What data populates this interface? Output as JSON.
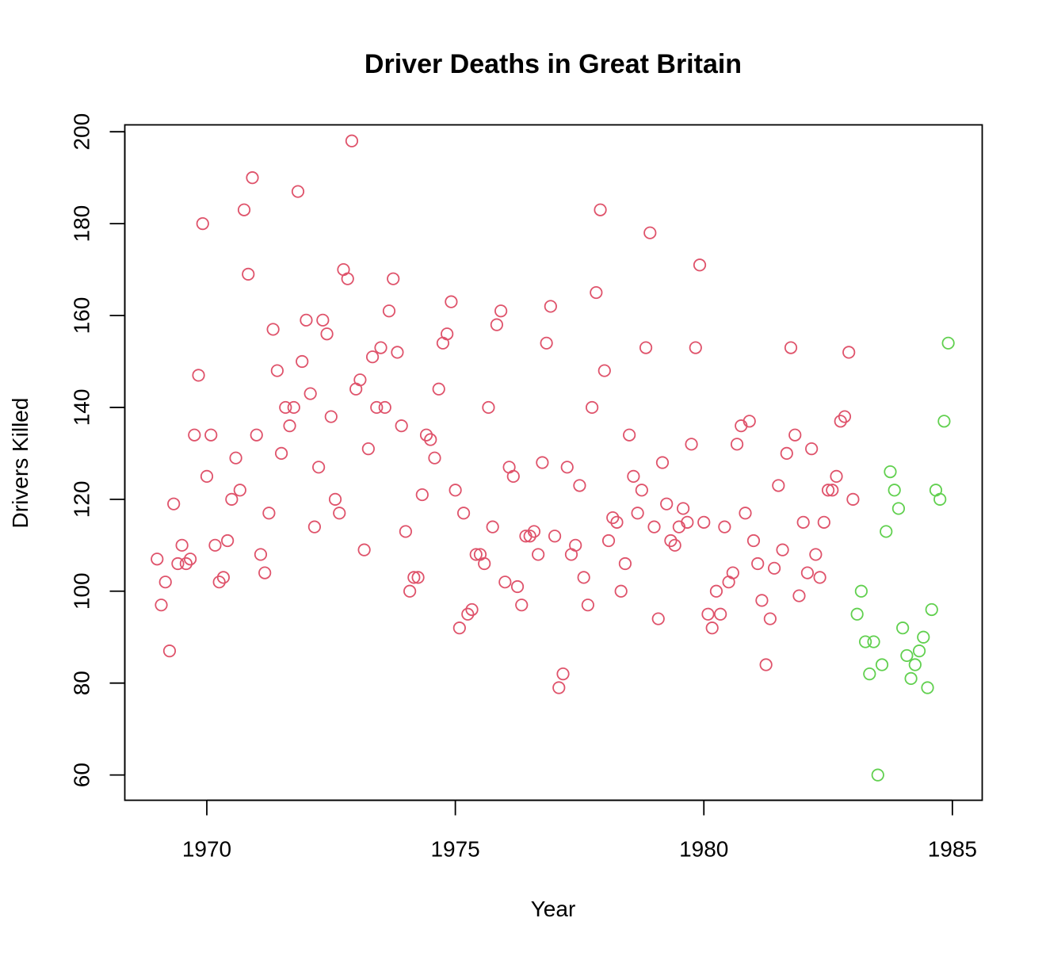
{
  "chart_data": {
    "type": "scatter",
    "title": "Driver Deaths in Great Britain",
    "xlabel": "Year",
    "ylabel": "Drivers Killed",
    "xlim": [
      1968.35,
      1985.6
    ],
    "ylim": [
      54.5,
      201.5
    ],
    "xticks": [
      1970,
      1975,
      1980,
      1985
    ],
    "yticks": [
      60,
      80,
      100,
      120,
      140,
      160,
      180,
      200
    ],
    "grid": false,
    "legend": "none",
    "colors": {
      "before_law": "#DF536B",
      "after_law": "#61D04F",
      "axis": "#000000"
    },
    "x_start": 1969,
    "x_step": 0.0833333333,
    "series": [
      {
        "color": "#DF536B",
        "marker": "open-circle",
        "values": [
          107,
          97,
          102,
          87,
          119,
          106,
          110,
          106,
          107,
          134,
          147,
          180,
          125,
          134,
          110,
          102,
          103,
          111,
          120,
          129,
          122,
          183,
          169,
          190,
          134,
          108,
          104,
          117,
          157,
          148,
          130,
          140,
          136,
          140,
          187,
          150,
          159,
          143,
          114,
          127,
          159,
          156,
          138,
          120,
          117,
          170,
          168,
          198,
          144,
          146,
          109,
          131,
          151,
          140,
          153,
          140,
          161,
          168,
          152,
          136,
          113,
          100,
          103,
          103,
          121,
          134,
          133,
          129,
          144,
          154,
          156,
          163,
          122,
          92,
          117,
          95,
          96,
          108,
          108,
          106,
          140,
          114,
          158,
          161,
          102,
          127,
          125,
          101,
          97,
          112,
          112,
          113,
          108,
          128,
          154,
          162,
          112,
          79,
          82,
          127,
          108,
          110,
          123,
          103,
          97,
          140,
          165,
          183,
          148,
          111,
          116,
          115,
          100,
          106,
          134,
          125,
          117,
          122,
          153,
          178,
          114,
          94,
          128,
          119,
          111,
          110,
          114,
          118,
          115,
          132,
          153,
          171,
          115,
          95,
          92,
          100,
          95,
          114,
          102,
          104,
          132,
          136,
          117,
          137,
          111,
          106,
          98,
          84,
          94,
          105,
          123,
          109,
          130,
          153,
          134,
          99,
          115,
          104,
          131,
          108,
          103,
          115,
          122,
          122,
          125,
          137,
          138,
          152,
          120
        ]
      },
      {
        "color": "#61D04F",
        "marker": "open-circle",
        "values": [
          95,
          100,
          89,
          82,
          89,
          60,
          84,
          113,
          126,
          122,
          118,
          92,
          86,
          81,
          84,
          87,
          90,
          79,
          96,
          122,
          120,
          137,
          154
        ]
      }
    ]
  }
}
